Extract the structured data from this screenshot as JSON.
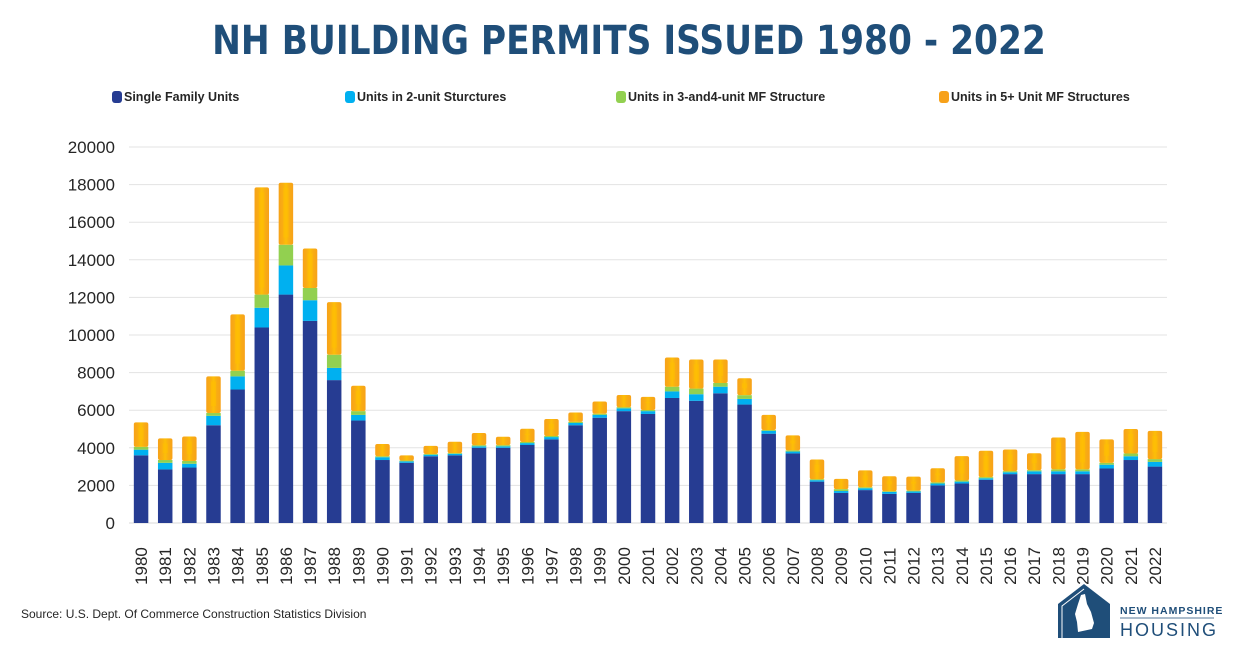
{
  "header": {
    "title": "NH BUILDING PERMITS ISSUED 1980 - 2022"
  },
  "footer": {
    "source": "Source: U.S. Dept. Of Commerce  Construction Statistics Division",
    "logo": {
      "line1": "NEW HAMPSHIRE",
      "line2": "HOUSING",
      "icon": "house-with-nh-state-icon",
      "color": "#1f4e79"
    }
  },
  "chart_data": {
    "type": "bar",
    "stacked": true,
    "title": "NH BUILDING PERMITS ISSUED 1980 - 2022",
    "xlabel": "",
    "ylabel": "",
    "ylim": [
      0,
      20000
    ],
    "yticks": [
      0,
      2000,
      4000,
      6000,
      8000,
      10000,
      12000,
      14000,
      16000,
      18000,
      20000
    ],
    "grid": true,
    "legend_position": "top",
    "categories": [
      "1980",
      "1981",
      "1982",
      "1983",
      "1984",
      "1985",
      "1986",
      "1987",
      "1988",
      "1989",
      "1990",
      "1991",
      "1992",
      "1993",
      "1994",
      "1995",
      "1996",
      "1997",
      "1998",
      "1999",
      "2000",
      "2001",
      "2002",
      "2003",
      "2004",
      "2005",
      "2006",
      "2007",
      "2008",
      "2009",
      "2010",
      "2011",
      "2012",
      "2013",
      "2014",
      "2015",
      "2016",
      "2017",
      "2018",
      "2019",
      "2020",
      "2021",
      "2022"
    ],
    "series": [
      {
        "name": "Single Family Units",
        "color": "#263c92",
        "values": [
          3600,
          2850,
          2950,
          5200,
          7100,
          10400,
          12150,
          10750,
          7600,
          5450,
          3350,
          3200,
          3550,
          3600,
          4000,
          4000,
          4150,
          4450,
          5200,
          5600,
          5950,
          5800,
          6650,
          6500,
          6900,
          6300,
          4750,
          3700,
          2200,
          1600,
          1750,
          1550,
          1600,
          2000,
          2100,
          2300,
          2600,
          2600,
          2600,
          2600,
          2900,
          3350,
          3000
        ]
      },
      {
        "name": "Units in 2-unit Sturctures",
        "color": "#00b0f0",
        "values": [
          300,
          350,
          200,
          500,
          700,
          1050,
          1550,
          1100,
          650,
          300,
          150,
          80,
          80,
          80,
          80,
          80,
          100,
          120,
          120,
          150,
          150,
          150,
          350,
          350,
          350,
          300,
          150,
          100,
          80,
          100,
          100,
          100,
          80,
          100,
          100,
          80,
          100,
          150,
          150,
          150,
          200,
          200,
          250
        ]
      },
      {
        "name": "Units in 3-and4-unit MF Structure",
        "color": "#92d050",
        "values": [
          150,
          150,
          150,
          150,
          300,
          700,
          1100,
          650,
          700,
          200,
          50,
          40,
          40,
          40,
          60,
          60,
          60,
          60,
          60,
          60,
          60,
          60,
          250,
          300,
          200,
          200,
          50,
          60,
          50,
          100,
          50,
          40,
          40,
          60,
          60,
          60,
          60,
          60,
          100,
          100,
          100,
          150,
          150
        ]
      },
      {
        "name": "Units in 5+ Unit MF Structures",
        "color": "#f7a11a",
        "values": [
          1300,
          1150,
          1300,
          1950,
          3000,
          5700,
          3300,
          2100,
          2800,
          1350,
          650,
          280,
          430,
          600,
          650,
          450,
          700,
          900,
          500,
          650,
          650,
          700,
          1550,
          1550,
          1250,
          900,
          800,
          800,
          1050,
          550,
          900,
          800,
          750,
          750,
          1300,
          1400,
          1150,
          900,
          1700,
          2000,
          1250,
          1300,
          1500
        ]
      }
    ]
  }
}
